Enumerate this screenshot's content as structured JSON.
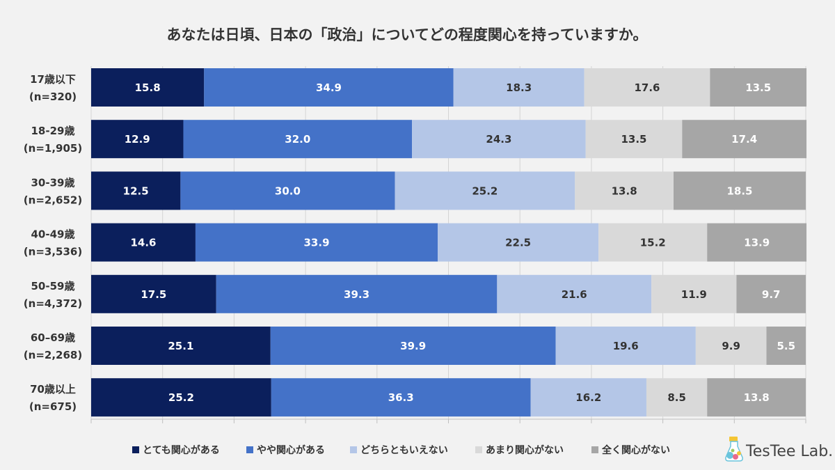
{
  "title": "あなたは日頃、日本の「政治」についてどの程度関心を持っていますか。",
  "brand": {
    "name": "TesTee Lab."
  },
  "chart_data": {
    "type": "bar",
    "orientation": "horizontal",
    "stacked": true,
    "title": "あなたは日頃、日本の「政治」についてどの程度関心を持っていますか。",
    "unit": "%",
    "xlim": [
      0,
      100
    ],
    "grid": true,
    "legend_position": "bottom",
    "categories": [
      [
        "17歳以下",
        "(n=320)"
      ],
      [
        "18-29歳",
        "(n=1,905)"
      ],
      [
        "30-39歳",
        "(n=2,652)"
      ],
      [
        "40-49歳",
        "(n=3,536)"
      ],
      [
        "50-59歳",
        "(n=4,372)"
      ],
      [
        "60–69歳",
        "(n=2,268)"
      ],
      [
        "70歳以上",
        "(n=675)"
      ]
    ],
    "series": [
      {
        "name": "とても関心がある",
        "color": "#0b1f5c",
        "label_color": "#ffffff",
        "values": [
          15.8,
          12.9,
          12.5,
          14.6,
          17.5,
          25.1,
          25.2
        ],
        "labels": [
          "15.8",
          "12.9",
          "12.5",
          "14.6",
          "17.5",
          "25.1",
          "25.2"
        ]
      },
      {
        "name": "やや関心がある",
        "color": "#4472c8",
        "label_color": "#ffffff",
        "values": [
          34.9,
          32.0,
          30.0,
          33.9,
          39.3,
          39.9,
          36.3
        ],
        "labels": [
          "34.9",
          "32.0",
          "30.0",
          "33.9",
          "39.3",
          "39.9",
          "36.3"
        ]
      },
      {
        "name": "どちらともいえない",
        "color": "#b4c6e7",
        "label_color": "#333333",
        "values": [
          18.3,
          24.3,
          25.2,
          22.5,
          21.6,
          19.6,
          16.2
        ],
        "labels": [
          "18.3",
          "24.3",
          "25.2",
          "22.5",
          "21.6",
          "19.6",
          "16.2"
        ]
      },
      {
        "name": "あまり関心がない",
        "color": "#d9d9d9",
        "label_color": "#333333",
        "values": [
          17.6,
          13.5,
          13.8,
          15.2,
          11.9,
          9.9,
          8.5
        ],
        "labels": [
          "17.6",
          "13.5",
          "13.8",
          "15.2",
          "11.9",
          "9.9",
          "8.5"
        ]
      },
      {
        "name": "全く関心がない",
        "color": "#a6a6a6",
        "label_color": "#ffffff",
        "values": [
          13.5,
          17.4,
          18.5,
          13.9,
          9.7,
          5.5,
          13.8
        ],
        "labels": [
          "13.5",
          "17.4",
          "18.5",
          "13.9",
          "9.7",
          "5.5",
          "13.8"
        ]
      }
    ]
  }
}
